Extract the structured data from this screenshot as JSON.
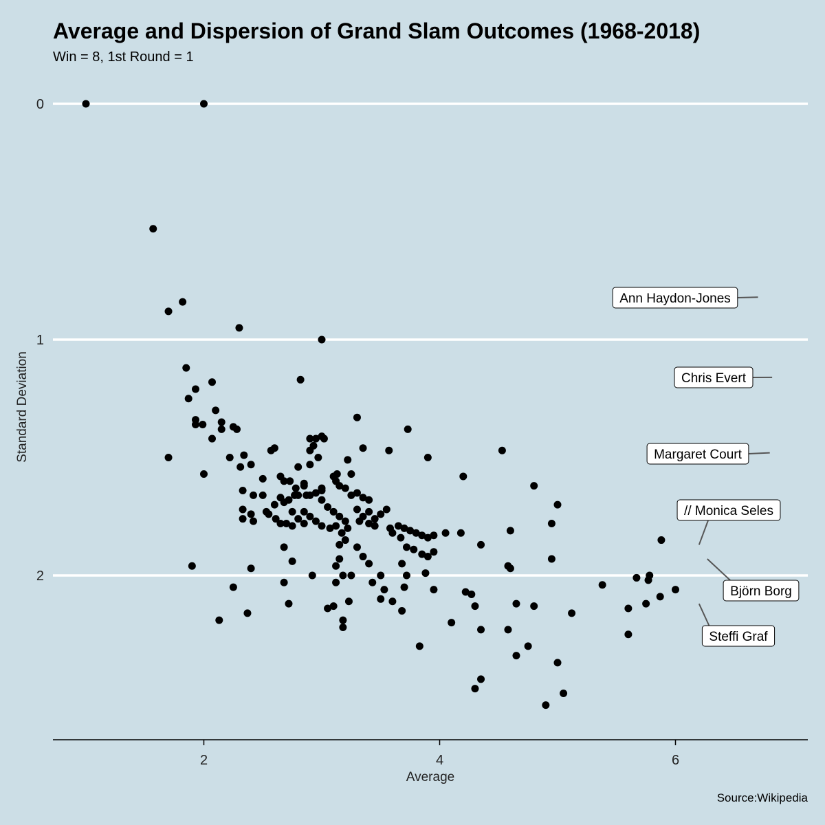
{
  "chart_data": {
    "type": "scatter",
    "title": "Average and Dispersion of Grand Slam Outcomes (1968-2018)",
    "subtitle": "Win = 8, 1st Round = 1",
    "xlabel": "Average",
    "ylabel": "Standard Deviation",
    "caption": "Source:Wikipedia",
    "xlim": [
      0.7,
      7.1
    ],
    "ylim": [
      0,
      2.7
    ],
    "y_reversed": true,
    "x_ticks": [
      "2",
      "4",
      "6"
    ],
    "y_ticks": [
      "0",
      "1",
      "2"
    ],
    "grid": "horizontal major lines only",
    "colors": {
      "background": "#ccdee6",
      "grid": "#ffffff",
      "point": "#000000",
      "connector": "#555555"
    },
    "annotations": [
      {
        "label": "Ann Haydon-Jones",
        "x": 6.7,
        "y": 0.82
      },
      {
        "label": "Chris Evert",
        "x": 6.82,
        "y": 1.16
      },
      {
        "label": "Margaret Court",
        "x": 6.8,
        "y": 1.48
      },
      {
        "label": "// Monica Seles",
        "x": 6.2,
        "y": 1.87
      },
      {
        "label": "Björn Borg",
        "x": 6.27,
        "y": 1.93
      },
      {
        "label": "Steffi Graf",
        "x": 6.2,
        "y": 2.12
      }
    ],
    "points": [
      [
        1.0,
        0.0
      ],
      [
        2.0,
        0.0
      ],
      [
        1.57,
        0.53
      ],
      [
        1.82,
        0.84
      ],
      [
        1.7,
        0.88
      ],
      [
        2.3,
        0.95
      ],
      [
        3.0,
        1.0
      ],
      [
        2.82,
        1.17
      ],
      [
        1.85,
        1.12
      ],
      [
        2.07,
        1.18
      ],
      [
        1.87,
        1.25
      ],
      [
        1.93,
        1.21
      ],
      [
        2.1,
        1.3
      ],
      [
        1.93,
        1.34
      ],
      [
        1.93,
        1.36
      ],
      [
        1.99,
        1.36
      ],
      [
        2.15,
        1.35
      ],
      [
        2.15,
        1.38
      ],
      [
        2.25,
        1.37
      ],
      [
        2.28,
        1.38
      ],
      [
        2.07,
        1.42
      ],
      [
        1.7,
        1.5
      ],
      [
        2.0,
        1.57
      ],
      [
        2.22,
        1.5
      ],
      [
        2.31,
        1.54
      ],
      [
        2.34,
        1.49
      ],
      [
        2.4,
        1.53
      ],
      [
        2.5,
        1.59
      ],
      [
        2.57,
        1.47
      ],
      [
        2.6,
        1.46
      ],
      [
        2.65,
        1.58
      ],
      [
        2.68,
        1.6
      ],
      [
        2.73,
        1.6
      ],
      [
        2.78,
        1.63
      ],
      [
        2.8,
        1.54
      ],
      [
        2.85,
        1.61
      ],
      [
        2.87,
        1.66
      ],
      [
        2.9,
        1.47
      ],
      [
        2.9,
        1.42
      ],
      [
        2.93,
        1.45
      ],
      [
        2.95,
        1.42
      ],
      [
        2.97,
        1.5
      ],
      [
        3.0,
        1.41
      ],
      [
        3.02,
        1.42
      ],
      [
        3.0,
        1.63
      ],
      [
        2.33,
        1.64
      ],
      [
        2.42,
        1.66
      ],
      [
        2.33,
        1.72
      ],
      [
        2.5,
        1.66
      ],
      [
        2.65,
        1.67
      ],
      [
        2.72,
        1.68
      ],
      [
        2.77,
        1.66
      ],
      [
        2.8,
        1.66
      ],
      [
        2.85,
        1.62
      ],
      [
        2.9,
        1.66
      ],
      [
        2.95,
        1.65
      ],
      [
        3.0,
        1.64
      ],
      [
        3.1,
        1.58
      ],
      [
        3.12,
        1.6
      ],
      [
        3.15,
        1.62
      ],
      [
        3.2,
        1.63
      ],
      [
        3.25,
        1.66
      ],
      [
        3.3,
        1.65
      ],
      [
        3.35,
        1.67
      ],
      [
        3.4,
        1.68
      ],
      [
        2.33,
        1.76
      ],
      [
        2.4,
        1.74
      ],
      [
        2.55,
        1.74
      ],
      [
        2.6,
        1.7
      ],
      [
        2.68,
        1.69
      ],
      [
        2.75,
        1.73
      ],
      [
        2.8,
        1.76
      ],
      [
        2.85,
        1.73
      ],
      [
        2.9,
        1.75
      ],
      [
        2.95,
        1.77
      ],
      [
        3.05,
        1.71
      ],
      [
        3.1,
        1.73
      ],
      [
        3.15,
        1.75
      ],
      [
        3.2,
        1.77
      ],
      [
        3.3,
        1.72
      ],
      [
        3.35,
        1.75
      ],
      [
        3.4,
        1.73
      ],
      [
        3.45,
        1.76
      ],
      [
        3.5,
        1.74
      ],
      [
        3.55,
        1.72
      ],
      [
        2.42,
        1.77
      ],
      [
        2.53,
        1.73
      ],
      [
        2.61,
        1.76
      ],
      [
        2.65,
        1.78
      ],
      [
        2.7,
        1.78
      ],
      [
        2.75,
        1.79
      ],
      [
        2.85,
        1.78
      ],
      [
        3.0,
        1.79
      ],
      [
        3.07,
        1.8
      ],
      [
        3.12,
        1.79
      ],
      [
        3.17,
        1.82
      ],
      [
        3.22,
        1.8
      ],
      [
        3.32,
        1.77
      ],
      [
        3.4,
        1.78
      ],
      [
        3.45,
        1.79
      ],
      [
        3.58,
        1.8
      ],
      [
        3.65,
        1.79
      ],
      [
        3.7,
        1.8
      ],
      [
        3.75,
        1.81
      ],
      [
        3.8,
        1.82
      ],
      [
        3.85,
        1.83
      ],
      [
        3.9,
        1.84
      ],
      [
        3.95,
        1.83
      ],
      [
        3.6,
        1.82
      ],
      [
        3.67,
        1.84
      ],
      [
        3.72,
        1.88
      ],
      [
        3.78,
        1.89
      ],
      [
        3.85,
        1.91
      ],
      [
        3.9,
        1.92
      ],
      [
        3.95,
        1.9
      ],
      [
        4.18,
        1.82
      ],
      [
        4.05,
        1.82
      ],
      [
        4.2,
        1.58
      ],
      [
        4.53,
        1.47
      ],
      [
        4.8,
        1.62
      ],
      [
        5.0,
        1.7
      ],
      [
        4.95,
        1.78
      ],
      [
        4.6,
        1.81
      ],
      [
        4.35,
        1.87
      ],
      [
        2.68,
        1.88
      ],
      [
        2.75,
        1.94
      ],
      [
        3.15,
        1.87
      ],
      [
        3.2,
        1.85
      ],
      [
        3.3,
        1.88
      ],
      [
        3.35,
        1.92
      ],
      [
        3.15,
        1.93
      ],
      [
        3.12,
        1.96
      ],
      [
        3.18,
        2.0
      ],
      [
        3.25,
        2.0
      ],
      [
        3.4,
        1.95
      ],
      [
        3.5,
        2.0
      ],
      [
        3.68,
        1.95
      ],
      [
        3.72,
        2.0
      ],
      [
        3.88,
        1.99
      ],
      [
        4.6,
        1.97
      ],
      [
        4.95,
        1.93
      ],
      [
        4.58,
        1.96
      ],
      [
        1.9,
        1.96
      ],
      [
        2.4,
        1.97
      ],
      [
        2.25,
        2.05
      ],
      [
        2.68,
        2.03
      ],
      [
        2.92,
        2.0
      ],
      [
        3.12,
        2.03
      ],
      [
        3.43,
        2.03
      ],
      [
        3.53,
        2.06
      ],
      [
        3.7,
        2.05
      ],
      [
        3.95,
        2.06
      ],
      [
        3.5,
        2.1
      ],
      [
        3.6,
        2.11
      ],
      [
        3.23,
        2.11
      ],
      [
        3.1,
        2.13
      ],
      [
        3.05,
        2.14
      ],
      [
        3.18,
        2.19
      ],
      [
        3.18,
        2.22
      ],
      [
        2.37,
        2.16
      ],
      [
        2.72,
        2.12
      ],
      [
        3.68,
        2.15
      ],
      [
        4.22,
        2.07
      ],
      [
        4.27,
        2.08
      ],
      [
        4.3,
        2.13
      ],
      [
        4.1,
        2.2
      ],
      [
        4.35,
        2.23
      ],
      [
        4.58,
        2.23
      ],
      [
        4.65,
        2.12
      ],
      [
        4.8,
        2.13
      ],
      [
        5.12,
        2.16
      ],
      [
        3.83,
        2.3
      ],
      [
        4.65,
        2.34
      ],
      [
        4.75,
        2.3
      ],
      [
        5.0,
        2.37
      ],
      [
        4.35,
        2.44
      ],
      [
        4.3,
        2.48
      ],
      [
        4.9,
        2.55
      ],
      [
        5.05,
        2.5
      ],
      [
        2.13,
        2.19
      ],
      [
        5.38,
        2.04
      ],
      [
        5.6,
        2.25
      ],
      [
        5.6,
        2.14
      ],
      [
        5.67,
        2.01
      ],
      [
        5.77,
        2.02
      ],
      [
        5.78,
        2.0
      ],
      [
        5.75,
        2.12
      ],
      [
        5.87,
        2.09
      ],
      [
        6.0,
        2.06
      ],
      [
        5.88,
        1.85
      ],
      [
        3.3,
        1.33
      ],
      [
        3.73,
        1.38
      ],
      [
        3.35,
        1.46
      ],
      [
        3.57,
        1.47
      ],
      [
        3.9,
        1.5
      ],
      [
        3.22,
        1.51
      ],
      [
        3.25,
        1.57
      ],
      [
        3.13,
        1.57
      ],
      [
        2.9,
        1.53
      ],
      [
        3.0,
        1.68
      ]
    ]
  }
}
